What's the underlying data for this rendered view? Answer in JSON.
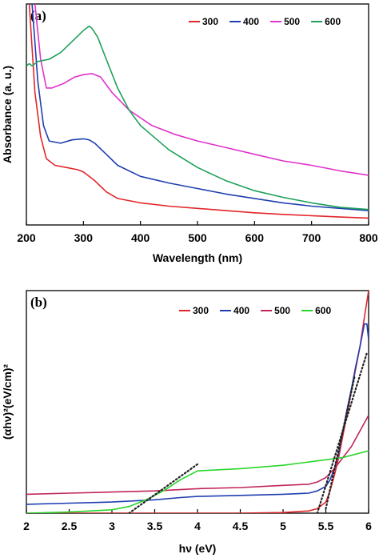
{
  "chart_data": [
    {
      "panel_label": "(a)",
      "type": "line",
      "xlabel": "Wavelength (nm)",
      "ylabel": "Absorbance (a. u.)",
      "xlim": [
        200,
        800
      ],
      "ylim": [
        0,
        1
      ],
      "xticks": [
        200,
        300,
        400,
        500,
        600,
        700,
        800
      ],
      "yticks_shown": false,
      "legend_position": "top-right",
      "series": [
        {
          "name": "300",
          "color": "#e3262a",
          "x": [
            205,
            215,
            225,
            235,
            250,
            270,
            290,
            300,
            310,
            320,
            340,
            360,
            400,
            450,
            500,
            550,
            600,
            650,
            700,
            750,
            800
          ],
          "y": [
            1.0,
            0.6,
            0.4,
            0.3,
            0.27,
            0.26,
            0.25,
            0.24,
            0.22,
            0.2,
            0.15,
            0.12,
            0.1,
            0.085,
            0.075,
            0.065,
            0.055,
            0.048,
            0.042,
            0.036,
            0.031
          ]
        },
        {
          "name": "400",
          "color": "#1f3fb0",
          "x": [
            210,
            220,
            230,
            240,
            260,
            280,
            300,
            310,
            320,
            340,
            360,
            400,
            450,
            500,
            550,
            600,
            650,
            700,
            750,
            800
          ],
          "y": [
            1.0,
            0.65,
            0.45,
            0.38,
            0.37,
            0.385,
            0.39,
            0.385,
            0.37,
            0.32,
            0.27,
            0.22,
            0.19,
            0.165,
            0.14,
            0.12,
            0.1,
            0.085,
            0.075,
            0.065
          ]
        },
        {
          "name": "500",
          "color": "#e033cc",
          "x": [
            215,
            225,
            235,
            245,
            265,
            285,
            300,
            315,
            330,
            350,
            380,
            420,
            460,
            500,
            550,
            600,
            650,
            700,
            750,
            800
          ],
          "y": [
            1.0,
            0.75,
            0.62,
            0.62,
            0.64,
            0.67,
            0.68,
            0.685,
            0.67,
            0.6,
            0.52,
            0.45,
            0.41,
            0.38,
            0.35,
            0.32,
            0.29,
            0.27,
            0.245,
            0.225
          ]
        },
        {
          "name": "600",
          "color": "#1fa05a",
          "x": [
            200,
            205,
            210,
            220,
            240,
            260,
            280,
            300,
            310,
            315,
            325,
            340,
            360,
            380,
            400,
            450,
            500,
            550,
            600,
            650,
            700,
            750,
            800
          ],
          "y": [
            0.72,
            0.73,
            0.72,
            0.74,
            0.75,
            0.78,
            0.83,
            0.88,
            0.9,
            0.89,
            0.85,
            0.75,
            0.62,
            0.52,
            0.45,
            0.34,
            0.26,
            0.2,
            0.155,
            0.125,
            0.1,
            0.08,
            0.07
          ]
        }
      ]
    },
    {
      "panel_label": "(b)",
      "type": "line",
      "xlabel": "hν (eV)",
      "ylabel": "(αhν)²(eV/cm)²",
      "xlim": [
        2,
        6
      ],
      "ylim": [
        0,
        1
      ],
      "xticks": [
        2,
        2.5,
        3,
        3.5,
        4,
        4.5,
        5,
        5.5,
        6
      ],
      "yticks_shown": false,
      "legend_position": "top-right",
      "series": [
        {
          "name": "300",
          "color": "#e3262a",
          "x": [
            2.0,
            2.5,
            3.0,
            3.5,
            4.0,
            4.5,
            5.0,
            5.3,
            5.4,
            5.5,
            5.55,
            5.6,
            5.65,
            5.7,
            5.75,
            5.8,
            5.85,
            5.9,
            5.95,
            6.0
          ],
          "y": [
            0.0,
            0.0,
            0.0,
            0.0,
            0.0,
            0.0,
            0.003,
            0.01,
            0.02,
            0.05,
            0.1,
            0.17,
            0.25,
            0.35,
            0.45,
            0.55,
            0.65,
            0.75,
            0.88,
            1.0
          ]
        },
        {
          "name": "400",
          "color": "#1f3fb0",
          "x": [
            2.0,
            2.5,
            3.0,
            3.5,
            3.8,
            4.0,
            4.5,
            5.0,
            5.3,
            5.4,
            5.5,
            5.55,
            5.6,
            5.65,
            5.7,
            5.75,
            5.8,
            5.85,
            5.9,
            5.95,
            5.98,
            6.0
          ],
          "y": [
            0.04,
            0.045,
            0.05,
            0.06,
            0.07,
            0.075,
            0.08,
            0.085,
            0.09,
            0.1,
            0.12,
            0.15,
            0.2,
            0.27,
            0.37,
            0.47,
            0.56,
            0.66,
            0.75,
            0.85,
            0.85,
            0.78
          ]
        },
        {
          "name": "500",
          "color": "#c0245a",
          "x": [
            2.0,
            2.5,
            3.0,
            3.5,
            4.0,
            4.5,
            5.0,
            5.3,
            5.4,
            5.5,
            5.6,
            5.7,
            5.8,
            5.9,
            6.0
          ],
          "y": [
            0.085,
            0.09,
            0.095,
            0.1,
            0.11,
            0.115,
            0.125,
            0.13,
            0.14,
            0.16,
            0.2,
            0.25,
            0.3,
            0.37,
            0.44
          ]
        },
        {
          "name": "600",
          "color": "#29d62b",
          "x": [
            2.0,
            2.5,
            3.0,
            3.2,
            3.4,
            3.6,
            3.8,
            3.9,
            4.0,
            4.5,
            5.0,
            5.3,
            5.5,
            5.7,
            5.8,
            5.9,
            6.0
          ],
          "y": [
            0.0,
            0.005,
            0.015,
            0.03,
            0.06,
            0.1,
            0.15,
            0.17,
            0.19,
            0.2,
            0.215,
            0.23,
            0.24,
            0.25,
            0.26,
            0.27,
            0.28
          ]
        }
      ],
      "fit_lines": [
        {
          "x": [
            3.2,
            4.0
          ],
          "y": [
            0.0,
            0.22
          ]
        },
        {
          "x": [
            5.4,
            5.98
          ],
          "y": [
            0.0,
            0.72
          ]
        },
        {
          "x": [
            5.5,
            5.84
          ],
          "y": [
            0.02,
            0.62
          ]
        }
      ]
    }
  ]
}
